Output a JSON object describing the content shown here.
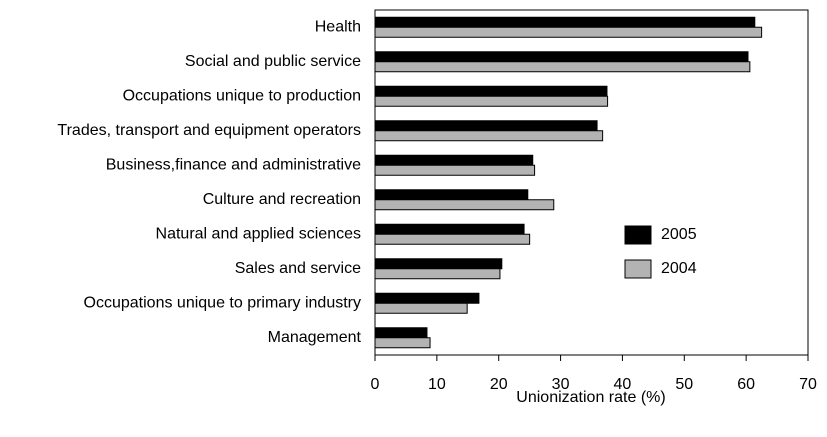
{
  "chart_data": {
    "type": "bar",
    "orientation": "horizontal",
    "x_label": "Unionization rate (%)",
    "categories": [
      "Health",
      "Social and public service",
      "Occupations unique to production",
      "Trades, transport and equipment operators",
      "Business,finance and administrative",
      "Culture and recreation",
      "Natural and applied sciences",
      "Sales and service",
      "Occupations unique to primary industry",
      "Management"
    ],
    "series": [
      {
        "name": "2005",
        "color": "#000000",
        "values": [
          61.4,
          60.3,
          37.5,
          35.9,
          25.5,
          24.7,
          24.1,
          20.5,
          16.8,
          8.4
        ]
      },
      {
        "name": "2004",
        "color": "#b3b3b3",
        "values": [
          62.5,
          60.6,
          37.6,
          36.8,
          25.8,
          28.9,
          25.0,
          20.2,
          14.9,
          8.9
        ]
      }
    ],
    "xlim": [
      0,
      70
    ],
    "xticks": [
      0,
      10,
      20,
      30,
      40,
      50,
      60,
      70
    ],
    "grid": false,
    "legend": "right"
  }
}
